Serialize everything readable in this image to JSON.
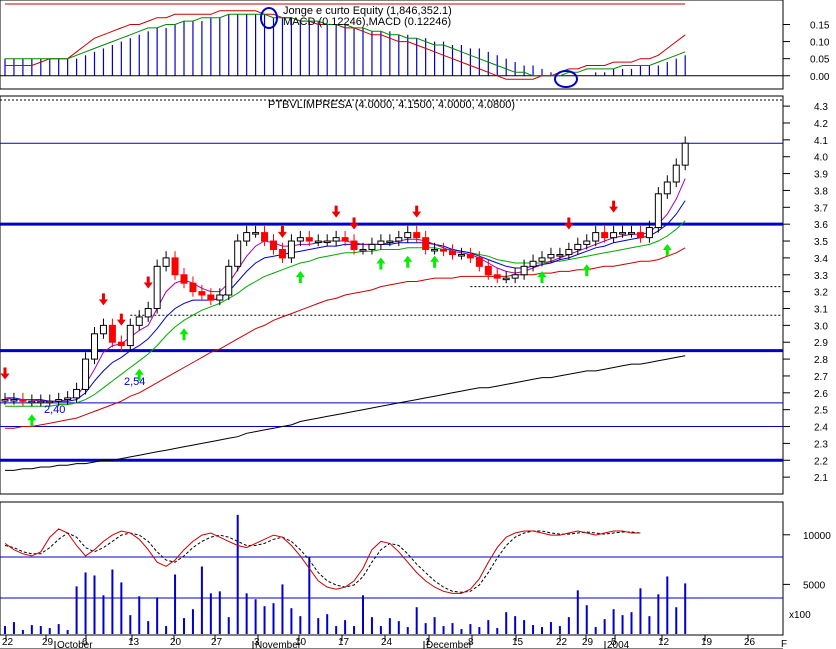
{
  "colors": {
    "macd_bar": "#0000cc",
    "macd_line": "#cc0000",
    "signal_line": "#008800",
    "equity_line": "#cc0000",
    "price_up": "#ffffff",
    "price_down": "#ff0000",
    "ma_fast": "#aa00aa",
    "ma_mid": "#0000cc",
    "ma_slow": "#00aa00",
    "ma_long": "#cc0000",
    "ma_longest": "#000000",
    "support_line": "#0000cc",
    "buy_arrow": "#00ee00",
    "sell_arrow": "#ee0000",
    "stoch_k": "#cc0000",
    "stoch_d": "#000000",
    "volume": "#0000cc"
  },
  "chart_data": [
    {
      "type": "bar",
      "panel": "macd",
      "title": "Jonge e curto Equity (1,846,352.1)",
      "subtitle": "MACD (0.12246),MACD (0.12246)",
      "yticks": [
        0.0,
        0.05,
        0.1,
        0.15
      ],
      "tick_labels": [
        "0.00",
        "0.05",
        "0.10",
        "0.15"
      ],
      "ylim": [
        -0.03,
        0.21
      ],
      "macd_hist": [
        0.05,
        0.05,
        0.05,
        0.05,
        0.05,
        0.05,
        0.05,
        0.05,
        0.05,
        0.06,
        0.07,
        0.08,
        0.09,
        0.1,
        0.11,
        0.12,
        0.13,
        0.14,
        0.14,
        0.15,
        0.16,
        0.16,
        0.16,
        0.17,
        0.17,
        0.18,
        0.18,
        0.18,
        0.18,
        0.18,
        0.17,
        0.17,
        0.17,
        0.16,
        0.16,
        0.16,
        0.15,
        0.15,
        0.15,
        0.14,
        0.14,
        0.13,
        0.13,
        0.13,
        0.12,
        0.12,
        0.11,
        0.11,
        0.1,
        0.1,
        0.09,
        0.09,
        0.08,
        0.08,
        0.07,
        0.06,
        0.05,
        0.04,
        0.03,
        0.03,
        0.02,
        0.01,
        0.0,
        0.0,
        0.0,
        0.0,
        0.01,
        0.01,
        0.02,
        0.02,
        0.02,
        0.03,
        0.03,
        0.03,
        0.04,
        0.05,
        0.06
      ],
      "macd_line": [
        0.03,
        0.03,
        0.03,
        0.03,
        0.04,
        0.05,
        0.05,
        0.05,
        0.07,
        0.09,
        0.11,
        0.12,
        0.13,
        0.14,
        0.15,
        0.15,
        0.16,
        0.17,
        0.17,
        0.18,
        0.18,
        0.18,
        0.18,
        0.18,
        0.19,
        0.19,
        0.19,
        0.19,
        0.19,
        0.18,
        0.18,
        0.17,
        0.17,
        0.16,
        0.16,
        0.15,
        0.15,
        0.15,
        0.14,
        0.14,
        0.13,
        0.12,
        0.12,
        0.11,
        0.1,
        0.1,
        0.09,
        0.08,
        0.07,
        0.06,
        0.05,
        0.04,
        0.03,
        0.02,
        0.01,
        0.0,
        -0.01,
        -0.01,
        -0.01,
        -0.01,
        0.0,
        0.0,
        0.01,
        0.02,
        0.02,
        0.03,
        0.03,
        0.03,
        0.04,
        0.04,
        0.04,
        0.05,
        0.05,
        0.06,
        0.08,
        0.1,
        0.12
      ],
      "signal_line": [
        0.05,
        0.05,
        0.05,
        0.05,
        0.05,
        0.05,
        0.05,
        0.05,
        0.06,
        0.07,
        0.08,
        0.09,
        0.1,
        0.11,
        0.12,
        0.13,
        0.14,
        0.14,
        0.15,
        0.15,
        0.16,
        0.16,
        0.17,
        0.17,
        0.17,
        0.18,
        0.18,
        0.18,
        0.18,
        0.18,
        0.17,
        0.17,
        0.17,
        0.16,
        0.16,
        0.16,
        0.15,
        0.15,
        0.15,
        0.14,
        0.14,
        0.13,
        0.13,
        0.12,
        0.12,
        0.11,
        0.11,
        0.1,
        0.09,
        0.09,
        0.08,
        0.07,
        0.06,
        0.05,
        0.04,
        0.03,
        0.02,
        0.01,
        0.01,
        0.0,
        0.0,
        0.0,
        0.0,
        0.01,
        0.01,
        0.02,
        0.02,
        0.02,
        0.02,
        0.03,
        0.03,
        0.03,
        0.03,
        0.04,
        0.05,
        0.06,
        0.07
      ],
      "equity_line": [
        0.21,
        0.21,
        0.21,
        0.21,
        0.21,
        0.21,
        0.21,
        0.21,
        0.21,
        0.21,
        0.21,
        0.21,
        0.21,
        0.21,
        0.21,
        0.21,
        0.21,
        0.21,
        0.21,
        0.21,
        0.21,
        0.21,
        0.21,
        0.21,
        0.21,
        0.21,
        0.21,
        0.21,
        0.21,
        0.21,
        0.21,
        0.21,
        0.21,
        0.21,
        0.21,
        0.21,
        0.21,
        0.21,
        0.21,
        0.21,
        0.21,
        0.21,
        0.21,
        0.21,
        0.21,
        0.21,
        0.21,
        0.21,
        0.21,
        0.21,
        0.21,
        0.21,
        0.21,
        0.21,
        0.21,
        0.21,
        0.21,
        0.21,
        0.21,
        0.21,
        0.21,
        0.21,
        0.21,
        0.21,
        0.21,
        0.21,
        0.21,
        0.21,
        0.21,
        0.21,
        0.21,
        0.21,
        0.21,
        0.21,
        0.21,
        0.21,
        0.21
      ]
    },
    {
      "type": "candlestick",
      "panel": "price",
      "title": "PTBVLIMPRESA (4.0000, 4.1500, 4.0000, 4.0800)",
      "yticks": [
        2.1,
        2.2,
        2.3,
        2.4,
        2.5,
        2.6,
        2.7,
        2.8,
        2.9,
        3.0,
        3.1,
        3.2,
        3.3,
        3.4,
        3.5,
        3.6,
        3.7,
        3.8,
        3.9,
        4.0,
        4.1,
        4.2,
        4.3
      ],
      "tick_labels": [
        "2.1",
        "2.2",
        "2.3",
        "2.4",
        "2.5",
        "2.6",
        "2.7",
        "2.8",
        "2.9",
        "3.0",
        "3.1",
        "3.2",
        "3.3",
        "3.4",
        "3.5",
        "3.6",
        "3.7",
        "3.8",
        "3.9",
        "4.0",
        "4.1",
        "4.2",
        "4.3"
      ],
      "ylim": [
        2.0,
        4.36
      ],
      "close": [
        2.56,
        2.56,
        2.55,
        2.55,
        2.55,
        2.55,
        2.56,
        2.57,
        2.62,
        2.8,
        2.95,
        3.0,
        2.9,
        2.88,
        3.0,
        3.05,
        3.1,
        3.35,
        3.4,
        3.3,
        3.25,
        3.2,
        3.18,
        3.15,
        3.18,
        3.35,
        3.5,
        3.55,
        3.55,
        3.5,
        3.45,
        3.4,
        3.5,
        3.52,
        3.5,
        3.5,
        3.5,
        3.52,
        3.5,
        3.45,
        3.45,
        3.48,
        3.5,
        3.5,
        3.52,
        3.55,
        3.52,
        3.45,
        3.45,
        3.44,
        3.42,
        3.42,
        3.4,
        3.35,
        3.3,
        3.28,
        3.28,
        3.3,
        3.35,
        3.38,
        3.4,
        3.42,
        3.42,
        3.45,
        3.48,
        3.5,
        3.55,
        3.52,
        3.55,
        3.55,
        3.55,
        3.52,
        3.58,
        3.78,
        3.85,
        3.95,
        4.08
      ],
      "ma_fast": [
        2.57,
        2.56,
        2.56,
        2.56,
        2.55,
        2.55,
        2.55,
        2.56,
        2.58,
        2.65,
        2.74,
        2.84,
        2.88,
        2.89,
        2.93,
        2.97,
        3.0,
        3.1,
        3.2,
        3.25,
        3.27,
        3.25,
        3.22,
        3.2,
        3.2,
        3.25,
        3.33,
        3.41,
        3.47,
        3.5,
        3.49,
        3.47,
        3.47,
        3.48,
        3.48,
        3.49,
        3.5,
        3.5,
        3.5,
        3.49,
        3.48,
        3.48,
        3.48,
        3.49,
        3.5,
        3.51,
        3.51,
        3.5,
        3.48,
        3.46,
        3.44,
        3.43,
        3.42,
        3.4,
        3.37,
        3.34,
        3.32,
        3.31,
        3.32,
        3.34,
        3.36,
        3.38,
        3.4,
        3.42,
        3.44,
        3.46,
        3.48,
        3.5,
        3.52,
        3.53,
        3.54,
        3.54,
        3.55,
        3.6,
        3.66,
        3.75,
        3.87
      ],
      "ma_mid": [
        2.57,
        2.57,
        2.56,
        2.56,
        2.56,
        2.55,
        2.55,
        2.55,
        2.56,
        2.6,
        2.67,
        2.73,
        2.78,
        2.81,
        2.85,
        2.88,
        2.92,
        2.98,
        3.05,
        3.1,
        3.13,
        3.15,
        3.15,
        3.15,
        3.16,
        3.2,
        3.26,
        3.32,
        3.37,
        3.4,
        3.41,
        3.42,
        3.43,
        3.44,
        3.45,
        3.46,
        3.47,
        3.47,
        3.48,
        3.48,
        3.48,
        3.48,
        3.48,
        3.48,
        3.49,
        3.49,
        3.49,
        3.49,
        3.48,
        3.47,
        3.45,
        3.44,
        3.43,
        3.41,
        3.39,
        3.37,
        3.35,
        3.34,
        3.34,
        3.35,
        3.36,
        3.37,
        3.39,
        3.4,
        3.42,
        3.44,
        3.46,
        3.47,
        3.49,
        3.5,
        3.51,
        3.52,
        3.53,
        3.56,
        3.6,
        3.66,
        3.74
      ],
      "ma_slow": [
        2.52,
        2.52,
        2.52,
        2.52,
        2.52,
        2.52,
        2.53,
        2.53,
        2.54,
        2.56,
        2.59,
        2.63,
        2.67,
        2.71,
        2.75,
        2.79,
        2.83,
        2.88,
        2.94,
        2.99,
        3.03,
        3.06,
        3.09,
        3.11,
        3.13,
        3.16,
        3.19,
        3.23,
        3.26,
        3.29,
        3.31,
        3.33,
        3.35,
        3.37,
        3.38,
        3.4,
        3.41,
        3.42,
        3.43,
        3.43,
        3.44,
        3.44,
        3.45,
        3.45,
        3.45,
        3.46,
        3.46,
        3.46,
        3.46,
        3.45,
        3.45,
        3.44,
        3.43,
        3.42,
        3.41,
        3.39,
        3.38,
        3.37,
        3.37,
        3.37,
        3.37,
        3.38,
        3.38,
        3.39,
        3.4,
        3.41,
        3.42,
        3.43,
        3.44,
        3.45,
        3.46,
        3.47,
        3.48,
        3.5,
        3.53,
        3.57,
        3.62
      ],
      "ma_long": [
        2.39,
        2.39,
        2.4,
        2.4,
        2.41,
        2.42,
        2.43,
        2.44,
        2.45,
        2.47,
        2.49,
        2.51,
        2.53,
        2.55,
        2.58,
        2.6,
        2.63,
        2.66,
        2.69,
        2.72,
        2.75,
        2.78,
        2.81,
        2.84,
        2.86,
        2.89,
        2.92,
        2.95,
        2.98,
        3.0,
        3.03,
        3.05,
        3.07,
        3.09,
        3.11,
        3.13,
        3.15,
        3.16,
        3.18,
        3.19,
        3.2,
        3.21,
        3.23,
        3.24,
        3.25,
        3.26,
        3.26,
        3.27,
        3.28,
        3.28,
        3.28,
        3.29,
        3.29,
        3.29,
        3.29,
        3.29,
        3.29,
        3.3,
        3.3,
        3.3,
        3.31,
        3.31,
        3.32,
        3.32,
        3.33,
        3.33,
        3.34,
        3.35,
        3.35,
        3.36,
        3.37,
        3.38,
        3.38,
        3.39,
        3.41,
        3.43,
        3.46
      ],
      "ma_longest": [
        2.14,
        2.14,
        2.15,
        2.15,
        2.16,
        2.16,
        2.17,
        2.17,
        2.18,
        2.18,
        2.19,
        2.2,
        2.2,
        2.21,
        2.22,
        2.23,
        2.24,
        2.25,
        2.26,
        2.27,
        2.28,
        2.29,
        2.3,
        2.31,
        2.32,
        2.33,
        2.34,
        2.36,
        2.37,
        2.38,
        2.39,
        2.4,
        2.41,
        2.43,
        2.44,
        2.45,
        2.46,
        2.47,
        2.48,
        2.49,
        2.5,
        2.51,
        2.52,
        2.53,
        2.54,
        2.55,
        2.56,
        2.57,
        2.58,
        2.59,
        2.6,
        2.61,
        2.62,
        2.63,
        2.63,
        2.64,
        2.65,
        2.66,
        2.67,
        2.68,
        2.69,
        2.69,
        2.7,
        2.71,
        2.72,
        2.73,
        2.73,
        2.74,
        2.75,
        2.76,
        2.77,
        2.77,
        2.78,
        2.79,
        2.8,
        2.81,
        2.82
      ],
      "support_lines": [
        2.2,
        2.85,
        3.6
      ],
      "thin_lines": [
        2.4,
        2.54,
        4.08
      ],
      "dashed_lines": [
        {
          "y": 3.06,
          "from": 14,
          "to": 76
        },
        {
          "y": 3.23,
          "from": 52,
          "to": 76
        }
      ],
      "annotations": [
        "2,40",
        "2,54"
      ],
      "sell_signals": [
        0,
        11,
        13,
        16,
        31,
        37,
        39,
        46,
        63,
        68
      ],
      "buy_signals": [
        3,
        15,
        20,
        33,
        42,
        45,
        48,
        60,
        65,
        74
      ]
    },
    {
      "type": "line",
      "panel": "stochastic",
      "stoch_k": [
        64,
        58,
        54,
        52,
        56,
        70,
        78,
        74,
        62,
        52,
        58,
        66,
        72,
        76,
        74,
        68,
        58,
        46,
        42,
        48,
        58,
        66,
        72,
        74,
        70,
        66,
        62,
        60,
        64,
        68,
        72,
        70,
        62,
        52,
        40,
        28,
        22,
        20,
        22,
        28,
        40,
        58,
        66,
        64,
        56,
        46,
        36,
        28,
        22,
        18,
        16,
        16,
        20,
        30,
        46,
        60,
        70,
        74,
        76,
        76,
        74,
        72,
        72,
        74,
        76,
        74,
        72,
        74,
        76,
        76,
        74,
        74
      ],
      "stoch_d": [
        62,
        60,
        56,
        54,
        54,
        60,
        68,
        74,
        70,
        60,
        56,
        60,
        66,
        72,
        74,
        72,
        66,
        56,
        48,
        46,
        52,
        60,
        66,
        70,
        72,
        70,
        66,
        62,
        62,
        64,
        68,
        70,
        66,
        58,
        48,
        36,
        28,
        24,
        22,
        24,
        32,
        46,
        58,
        64,
        62,
        54,
        44,
        36,
        28,
        22,
        18,
        17,
        18,
        24,
        36,
        50,
        62,
        70,
        74,
        76,
        76,
        74,
        73,
        73,
        74,
        75,
        74,
        73,
        74,
        75,
        75,
        74
      ]
    },
    {
      "type": "bar",
      "panel": "volume",
      "yticks": [
        5000,
        10000
      ],
      "tick_labels": [
        "5000",
        "10000"
      ],
      "multiplier_label": "x100",
      "volume": [
        800,
        1200,
        400,
        900,
        800,
        600,
        1000,
        400,
        4800,
        6200,
        5900,
        3900,
        6500,
        5200,
        1900,
        3800,
        1300,
        3700,
        800,
        6000,
        1600,
        2500,
        6800,
        4100,
        4300,
        1700,
        12000,
        4100,
        3500,
        2800,
        3100,
        5000,
        2600,
        1800,
        7800,
        1600,
        2000,
        800,
        1400,
        800,
        3900,
        1700,
        800,
        1600,
        1300,
        700,
        2700,
        1100,
        1700,
        800,
        1100,
        500,
        1000,
        700,
        1400,
        600,
        2200,
        1800,
        1400,
        900,
        700,
        1200,
        800,
        1700,
        4400,
        2900,
        700,
        1500,
        2500,
        1900,
        2200,
        4600,
        1800,
        4000,
        5800,
        2700,
        5100
      ],
      "ylim": [
        0,
        13000
      ]
    }
  ],
  "x_axis": {
    "day_labels": [
      "22",
      "29",
      "6",
      "13",
      "20",
      "27",
      "3",
      "10",
      "17",
      "24",
      "1",
      "8",
      "15",
      "22",
      "29",
      "5",
      "12",
      "19",
      "26"
    ],
    "month_labels": [
      "October",
      "November",
      "December",
      "2004"
    ],
    "right_edge_label": "F"
  }
}
